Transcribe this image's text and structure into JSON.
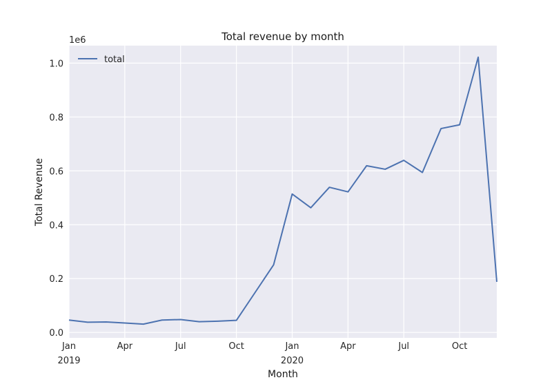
{
  "chart_data": {
    "type": "line",
    "title": "Total revenue by month",
    "xlabel": "Month",
    "ylabel": "Total Revenue",
    "y_scale_label": "1e6",
    "y_multiplier": 1000000,
    "grid": true,
    "legend_position": "top-left",
    "colors": {
      "background": "#EAEAF2",
      "grid": "#FFFFFF",
      "line": "#4C72B0"
    },
    "ylim": [
      -0.02,
      1.065
    ],
    "y_ticks": [
      0.0,
      0.2,
      0.4,
      0.6,
      0.8,
      1.0
    ],
    "y_tick_labels": [
      "0.0",
      "0.2",
      "0.4",
      "0.6",
      "0.8",
      "1.0"
    ],
    "xlim": [
      "2019-01",
      "2020-12"
    ],
    "x_ticks": [
      {
        "x": "2019-01",
        "label": "Jan",
        "sublabel": "2019"
      },
      {
        "x": "2019-04",
        "label": "Apr",
        "sublabel": ""
      },
      {
        "x": "2019-07",
        "label": "Jul",
        "sublabel": ""
      },
      {
        "x": "2019-10",
        "label": "Oct",
        "sublabel": ""
      },
      {
        "x": "2020-01",
        "label": "Jan",
        "sublabel": "2020"
      },
      {
        "x": "2020-04",
        "label": "Apr",
        "sublabel": ""
      },
      {
        "x": "2020-07",
        "label": "Jul",
        "sublabel": ""
      },
      {
        "x": "2020-10",
        "label": "Oct",
        "sublabel": ""
      }
    ],
    "x": [
      "2019-01",
      "2019-02",
      "2019-03",
      "2019-04",
      "2019-05",
      "2019-06",
      "2019-07",
      "2019-08",
      "2019-09",
      "2019-10",
      "2019-11",
      "2019-12",
      "2020-01",
      "2020-02",
      "2020-03",
      "2020-04",
      "2020-05",
      "2020-06",
      "2020-07",
      "2020-08",
      "2020-09",
      "2020-10",
      "2020-11",
      "2020-12"
    ],
    "series": [
      {
        "name": "total",
        "values": [
          46000,
          38000,
          39000,
          35000,
          31000,
          46000,
          48000,
          40000,
          42000,
          45000,
          148000,
          251000,
          514000,
          463000,
          539000,
          522000,
          619000,
          606000,
          639000,
          594000,
          757000,
          771000,
          1022000,
          188000
        ]
      }
    ]
  }
}
